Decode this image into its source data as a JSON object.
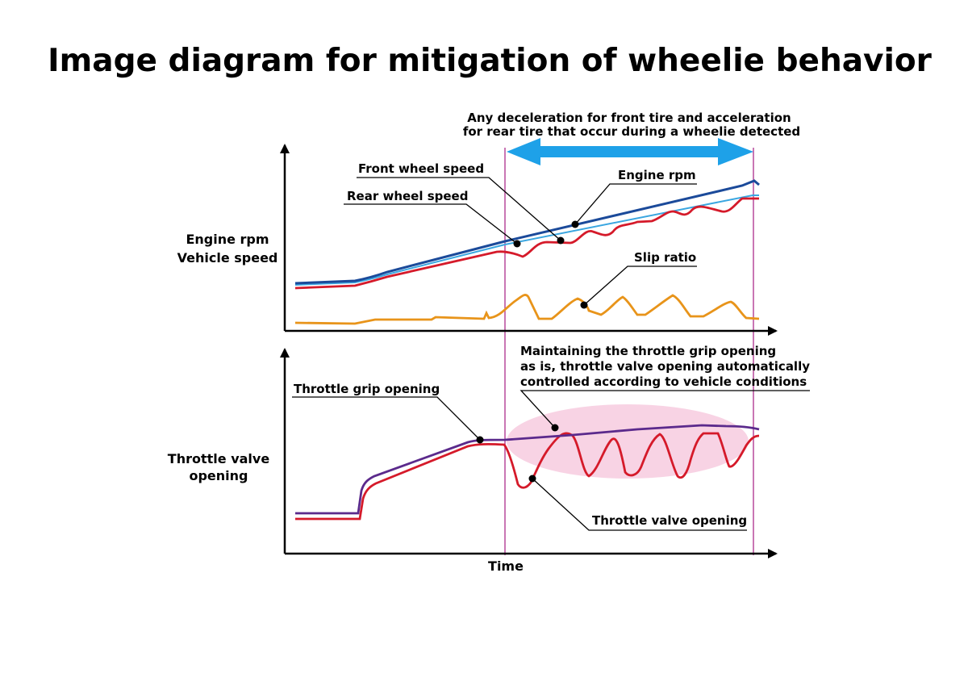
{
  "title": "Image diagram for mitigation of wheelie behavior",
  "top_note": [
    "Any deceleration for front tire and acceleration",
    "for rear tire that occur during a wheelie detected"
  ],
  "upper_chart": {
    "y_label": [
      "Engine rpm",
      "Vehicle speed"
    ],
    "callouts": {
      "front_wheel_speed": "Front wheel speed",
      "rear_wheel_speed": "Rear wheel speed",
      "engine_rpm": "Engine rpm",
      "slip_ratio": "Slip ratio"
    }
  },
  "lower_chart": {
    "y_label": [
      "Throttle valve",
      "opening"
    ],
    "note": [
      "Maintaining the throttle grip opening",
      "as is, throttle valve opening automatically",
      "controlled according to vehicle conditions"
    ],
    "callouts": {
      "throttle_grip_opening": "Throttle grip opening",
      "throttle_valve_opening": "Throttle valve opening"
    }
  },
  "x_label": "Time",
  "colors": {
    "engine_rpm": "#1b4a9a",
    "front_wheel_speed": "#3aa6e0",
    "rear_wheel_speed": "#d51a2a",
    "slip_ratio": "#e8941a",
    "throttle_grip": "#5b2a8c",
    "throttle_valve": "#d51a2a",
    "detection_arrow": "#1ea1e8",
    "marker_line": "#b23c94",
    "control_zone": "#f8d3e4"
  }
}
